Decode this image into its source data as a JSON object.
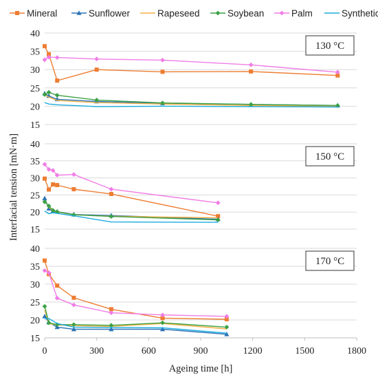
{
  "chart_data": {
    "type": "line",
    "xlabel": "Ageing time [h]",
    "ylabel": "Interfacial tension [mN·m]",
    "xlim": [
      0,
      1800
    ],
    "xticks": [
      "0",
      "300",
      "600",
      "900",
      "1200",
      "1500",
      "1800"
    ],
    "ylim": [
      15,
      40
    ],
    "yticks": [
      "15",
      "20",
      "25",
      "30",
      "35",
      "40"
    ],
    "grid": "horizontal",
    "legend_position": "top",
    "legend": [
      {
        "name": "Mineral",
        "color": "#ED7D31",
        "marker": "square"
      },
      {
        "name": "Sunflower",
        "color": "#2E75B6",
        "marker": "triangle"
      },
      {
        "name": "Rapeseed",
        "color": "#F5B041",
        "marker": "none"
      },
      {
        "name": "Soybean",
        "color": "#3BA144",
        "marker": "diamond"
      },
      {
        "name": "Palm",
        "color": "#F07CE6",
        "marker": "diamond"
      },
      {
        "name": "Synthetic",
        "color": "#18ABDF",
        "marker": "none"
      }
    ],
    "panels": [
      {
        "label": "130 °C",
        "series": [
          {
            "name": "Mineral",
            "x": [
              0,
              24,
              72,
              300,
              680,
              1190,
              1690
            ],
            "y": [
              36.4,
              34.2,
              27.0,
              30.0,
              29.4,
              29.5,
              28.4
            ]
          },
          {
            "name": "Sunflower",
            "x": [
              0,
              24,
              72,
              300,
              680,
              1190,
              1690
            ],
            "y": [
              23.5,
              22.8,
              21.9,
              21.3,
              20.8,
              20.5,
              20.2
            ]
          },
          {
            "name": "Rapeseed",
            "x": [
              0,
              24,
              72,
              300,
              680,
              1190,
              1690
            ],
            "y": [
              23.0,
              22.5,
              21.6,
              21.0,
              20.6,
              20.2,
              20.0
            ]
          },
          {
            "name": "Soybean",
            "x": [
              0,
              24,
              72,
              300,
              680,
              1190,
              1690
            ],
            "y": [
              23.2,
              23.8,
              23.0,
              21.7,
              20.9,
              20.5,
              20.2
            ]
          },
          {
            "name": "Palm",
            "x": [
              0,
              24,
              72,
              300,
              680,
              1190,
              1690
            ],
            "y": [
              32.7,
              33.4,
              33.3,
              32.9,
              32.6,
              31.3,
              29.3
            ]
          },
          {
            "name": "Synthetic",
            "x": [
              0,
              24,
              72,
              300,
              680,
              1190,
              1690
            ],
            "y": [
              21.0,
              20.6,
              20.4,
              19.9,
              20.0,
              19.9,
              19.8
            ]
          }
        ]
      },
      {
        "label": "150 °C",
        "series": [
          {
            "name": "Mineral",
            "x": [
              0,
              24,
              48,
              72,
              168,
              384,
              1000
            ],
            "y": [
              29.8,
              26.6,
              28.1,
              27.9,
              26.7,
              25.3,
              18.8
            ]
          },
          {
            "name": "Sunflower",
            "x": [
              0,
              24,
              48,
              72,
              168,
              384,
              1000
            ],
            "y": [
              24.0,
              21.0,
              20.2,
              20.1,
              19.3,
              19.0,
              17.9
            ]
          },
          {
            "name": "Rapeseed",
            "x": [
              0,
              24,
              48,
              72,
              168,
              384,
              1000
            ],
            "y": [
              23.3,
              21.4,
              20.4,
              20.0,
              19.2,
              18.8,
              18.3
            ]
          },
          {
            "name": "Soybean",
            "x": [
              0,
              24,
              48,
              72,
              168,
              384,
              1000
            ],
            "y": [
              23.0,
              21.8,
              20.5,
              20.1,
              19.2,
              18.7,
              17.7
            ]
          },
          {
            "name": "Palm",
            "x": [
              0,
              24,
              48,
              72,
              168,
              384,
              1000
            ],
            "y": [
              34.0,
              32.5,
              32.2,
              30.8,
              31.0,
              26.7,
              22.7
            ]
          },
          {
            "name": "Synthetic",
            "x": [
              0,
              24,
              48,
              72,
              168,
              384,
              1000
            ],
            "y": [
              20.3,
              19.5,
              19.8,
              19.6,
              18.9,
              17.1,
              17.0
            ]
          }
        ]
      },
      {
        "label": "170 °C",
        "series": [
          {
            "name": "Mineral",
            "x": [
              0,
              24,
              72,
              168,
              384,
              680,
              1050
            ],
            "y": [
              36.6,
              32.8,
              29.6,
              26.2,
              23.0,
              20.5,
              20.2
            ]
          },
          {
            "name": "Sunflower",
            "x": [
              0,
              24,
              72,
              168,
              384,
              680,
              1050
            ],
            "y": [
              21.0,
              19.3,
              18.0,
              17.4,
              17.4,
              17.4,
              16.0
            ]
          },
          {
            "name": "Rapeseed",
            "x": [
              0,
              24,
              72,
              168,
              384,
              680,
              1050
            ],
            "y": [
              22.8,
              19.0,
              18.6,
              18.4,
              18.2,
              19.0,
              17.5
            ]
          },
          {
            "name": "Soybean",
            "x": [
              0,
              24,
              72,
              168,
              384,
              680,
              1050
            ],
            "y": [
              23.8,
              19.2,
              18.7,
              18.7,
              18.5,
              19.2,
              18.0
            ]
          },
          {
            "name": "Palm",
            "x": [
              0,
              24,
              72,
              168,
              384,
              680,
              1050
            ],
            "y": [
              33.8,
              33.2,
              26.1,
              24.2,
              22.0,
              21.4,
              21.0
            ]
          },
          {
            "name": "Synthetic",
            "x": [
              0,
              24,
              72,
              168,
              384,
              680,
              1050
            ],
            "y": [
              20.4,
              20.4,
              19.0,
              18.0,
              17.9,
              17.8,
              16.3
            ]
          }
        ]
      }
    ]
  }
}
